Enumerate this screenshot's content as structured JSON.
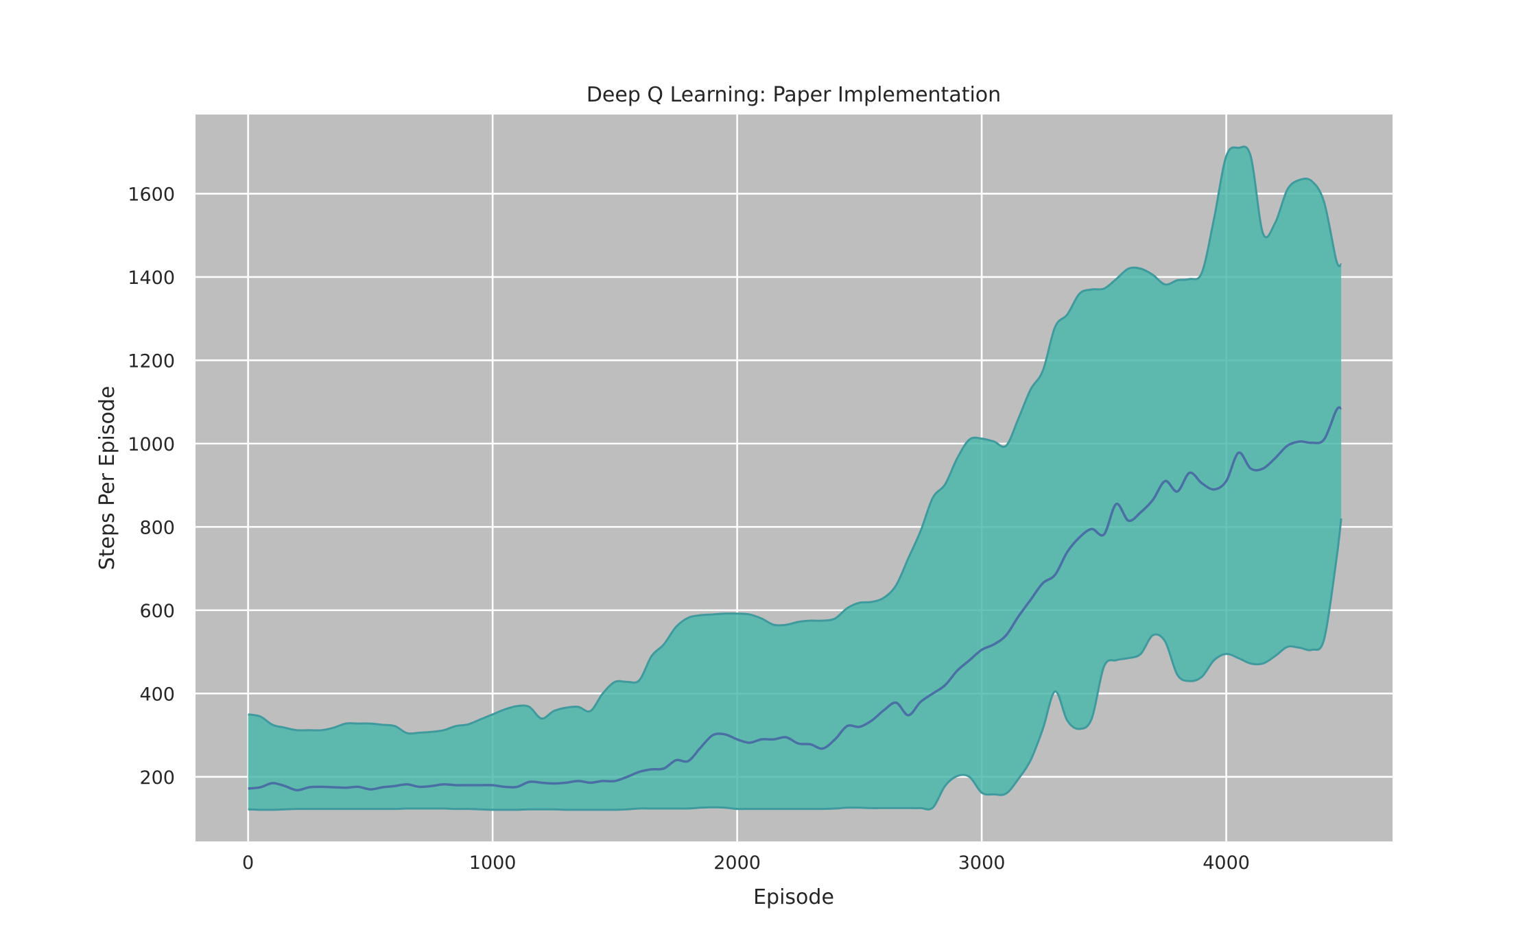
{
  "chart_data": {
    "type": "area",
    "title": "Deep Q Learning: Paper Implementation",
    "xlabel": "Episode",
    "ylabel": "Steps Per Episode",
    "xlim": [
      -215,
      4680
    ],
    "ylim": [
      45,
      1790
    ],
    "x_ticks": [
      "0",
      "1000",
      "2000",
      "3000",
      "4000"
    ],
    "x_tick_values": [
      0,
      1000,
      2000,
      3000,
      4000
    ],
    "y_ticks": [
      "200",
      "400",
      "600",
      "800",
      "1000",
      "1200",
      "1400",
      "1600"
    ],
    "y_tick_values": [
      200,
      400,
      600,
      800,
      1000,
      1200,
      1400,
      1600
    ],
    "grid": true,
    "legend": "none",
    "colors": {
      "plot_background": "#bebebe",
      "band_fill": "#4cb8aa",
      "band_edge": "#3f9a9e",
      "mean_line": "#4a6fa5"
    },
    "x": [
      0,
      50,
      100,
      150,
      200,
      250,
      300,
      350,
      400,
      450,
      500,
      550,
      600,
      650,
      700,
      750,
      800,
      850,
      900,
      950,
      1000,
      1050,
      1100,
      1150,
      1200,
      1250,
      1300,
      1350,
      1400,
      1450,
      1500,
      1550,
      1600,
      1650,
      1700,
      1750,
      1800,
      1850,
      1900,
      1950,
      2000,
      2050,
      2100,
      2150,
      2200,
      2250,
      2300,
      2350,
      2400,
      2450,
      2500,
      2550,
      2600,
      2650,
      2700,
      2750,
      2800,
      2850,
      2900,
      2950,
      3000,
      3050,
      3100,
      3150,
      3200,
      3250,
      3300,
      3350,
      3400,
      3450,
      3500,
      3550,
      3600,
      3650,
      3700,
      3750,
      3800,
      3850,
      3900,
      3950,
      4000,
      4050,
      4100,
      4150,
      4200,
      4250,
      4300,
      4350,
      4400,
      4450,
      4470
    ],
    "series": [
      {
        "role": "upper",
        "values": [
          350,
          345,
          325,
          318,
          312,
          312,
          312,
          318,
          328,
          328,
          328,
          325,
          322,
          305,
          306,
          308,
          312,
          322,
          326,
          338,
          350,
          362,
          370,
          368,
          340,
          358,
          366,
          368,
          358,
          400,
          428,
          428,
          432,
          490,
          518,
          560,
          582,
          588,
          590,
          592,
          592,
          590,
          580,
          565,
          565,
          572,
          575,
          575,
          580,
          605,
          618,
          620,
          630,
          660,
          725,
          790,
          870,
          902,
          965,
          1010,
          1012,
          1005,
          995,
          1060,
          1130,
          1175,
          1280,
          1310,
          1360,
          1370,
          1372,
          1395,
          1420,
          1420,
          1405,
          1382,
          1392,
          1395,
          1410,
          1540,
          1690,
          1710,
          1690,
          1505,
          1530,
          1610,
          1633,
          1630,
          1580,
          1440,
          1430
        ]
      },
      {
        "role": "mean",
        "values": [
          172,
          175,
          185,
          178,
          168,
          175,
          176,
          175,
          174,
          176,
          170,
          175,
          178,
          182,
          176,
          178,
          182,
          180,
          180,
          180,
          180,
          176,
          176,
          188,
          186,
          184,
          186,
          190,
          186,
          190,
          190,
          200,
          212,
          218,
          220,
          240,
          238,
          270,
          300,
          302,
          290,
          282,
          290,
          290,
          295,
          280,
          278,
          268,
          290,
          322,
          320,
          335,
          360,
          378,
          348,
          380,
          400,
          420,
          455,
          480,
          505,
          518,
          540,
          585,
          625,
          665,
          685,
          740,
          775,
          795,
          782,
          855,
          815,
          835,
          865,
          910,
          885,
          930,
          905,
          890,
          910,
          978,
          940,
          940,
          965,
          995,
          1005,
          1002,
          1010,
          1080,
          1085
        ]
      },
      {
        "role": "lower",
        "values": [
          122,
          121,
          121,
          122,
          123,
          123,
          123,
          123,
          123,
          123,
          123,
          123,
          123,
          124,
          124,
          124,
          124,
          123,
          123,
          122,
          121,
          121,
          121,
          122,
          122,
          122,
          121,
          121,
          121,
          121,
          121,
          122,
          124,
          124,
          124,
          124,
          124,
          126,
          127,
          126,
          123,
          123,
          123,
          123,
          123,
          123,
          123,
          123,
          124,
          126,
          126,
          125,
          125,
          125,
          125,
          125,
          126,
          178,
          202,
          200,
          162,
          158,
          160,
          195,
          240,
          315,
          405,
          335,
          315,
          340,
          465,
          480,
          485,
          495,
          540,
          525,
          445,
          430,
          440,
          480,
          495,
          485,
          472,
          472,
          490,
          512,
          510,
          505,
          530,
          720,
          820
        ]
      }
    ]
  }
}
